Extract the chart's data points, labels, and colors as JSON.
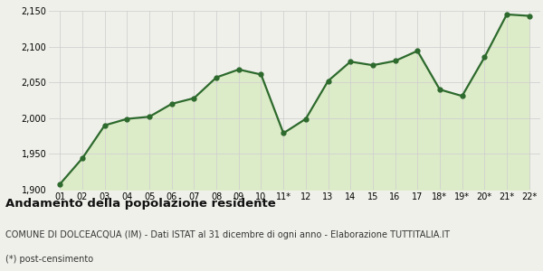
{
  "x_labels": [
    "01",
    "02",
    "03",
    "04",
    "05",
    "06",
    "07",
    "08",
    "09",
    "10",
    "11*",
    "12",
    "13",
    "14",
    "15",
    "16",
    "17",
    "18*",
    "19*",
    "20*",
    "21*",
    "22*"
  ],
  "y_values": [
    1908,
    1944,
    1990,
    1999,
    2002,
    2020,
    2028,
    2057,
    2068,
    2061,
    1979,
    1999,
    2052,
    2079,
    2074,
    2080,
    2094,
    2040,
    2031,
    2085,
    2145,
    2143
  ],
  "line_color": "#2d6a2d",
  "fill_color": "#ddecc8",
  "bg_color": "#f0f0eb",
  "marker_size": 3.5,
  "line_width": 1.6,
  "ylim": [
    1900,
    2150
  ],
  "yticks": [
    1900,
    1950,
    2000,
    2050,
    2100,
    2150
  ],
  "title": "Andamento della popolazione residente",
  "subtitle": "COMUNE DI DOLCEACQUA (IM) - Dati ISTAT al 31 dicembre di ogni anno - Elaborazione TUTTITALIA.IT",
  "footnote": "(*) post-censimento",
  "title_fontsize": 9.5,
  "subtitle_fontsize": 7,
  "footnote_fontsize": 7,
  "tick_fontsize": 7,
  "grid_color": "#d0d0d0"
}
